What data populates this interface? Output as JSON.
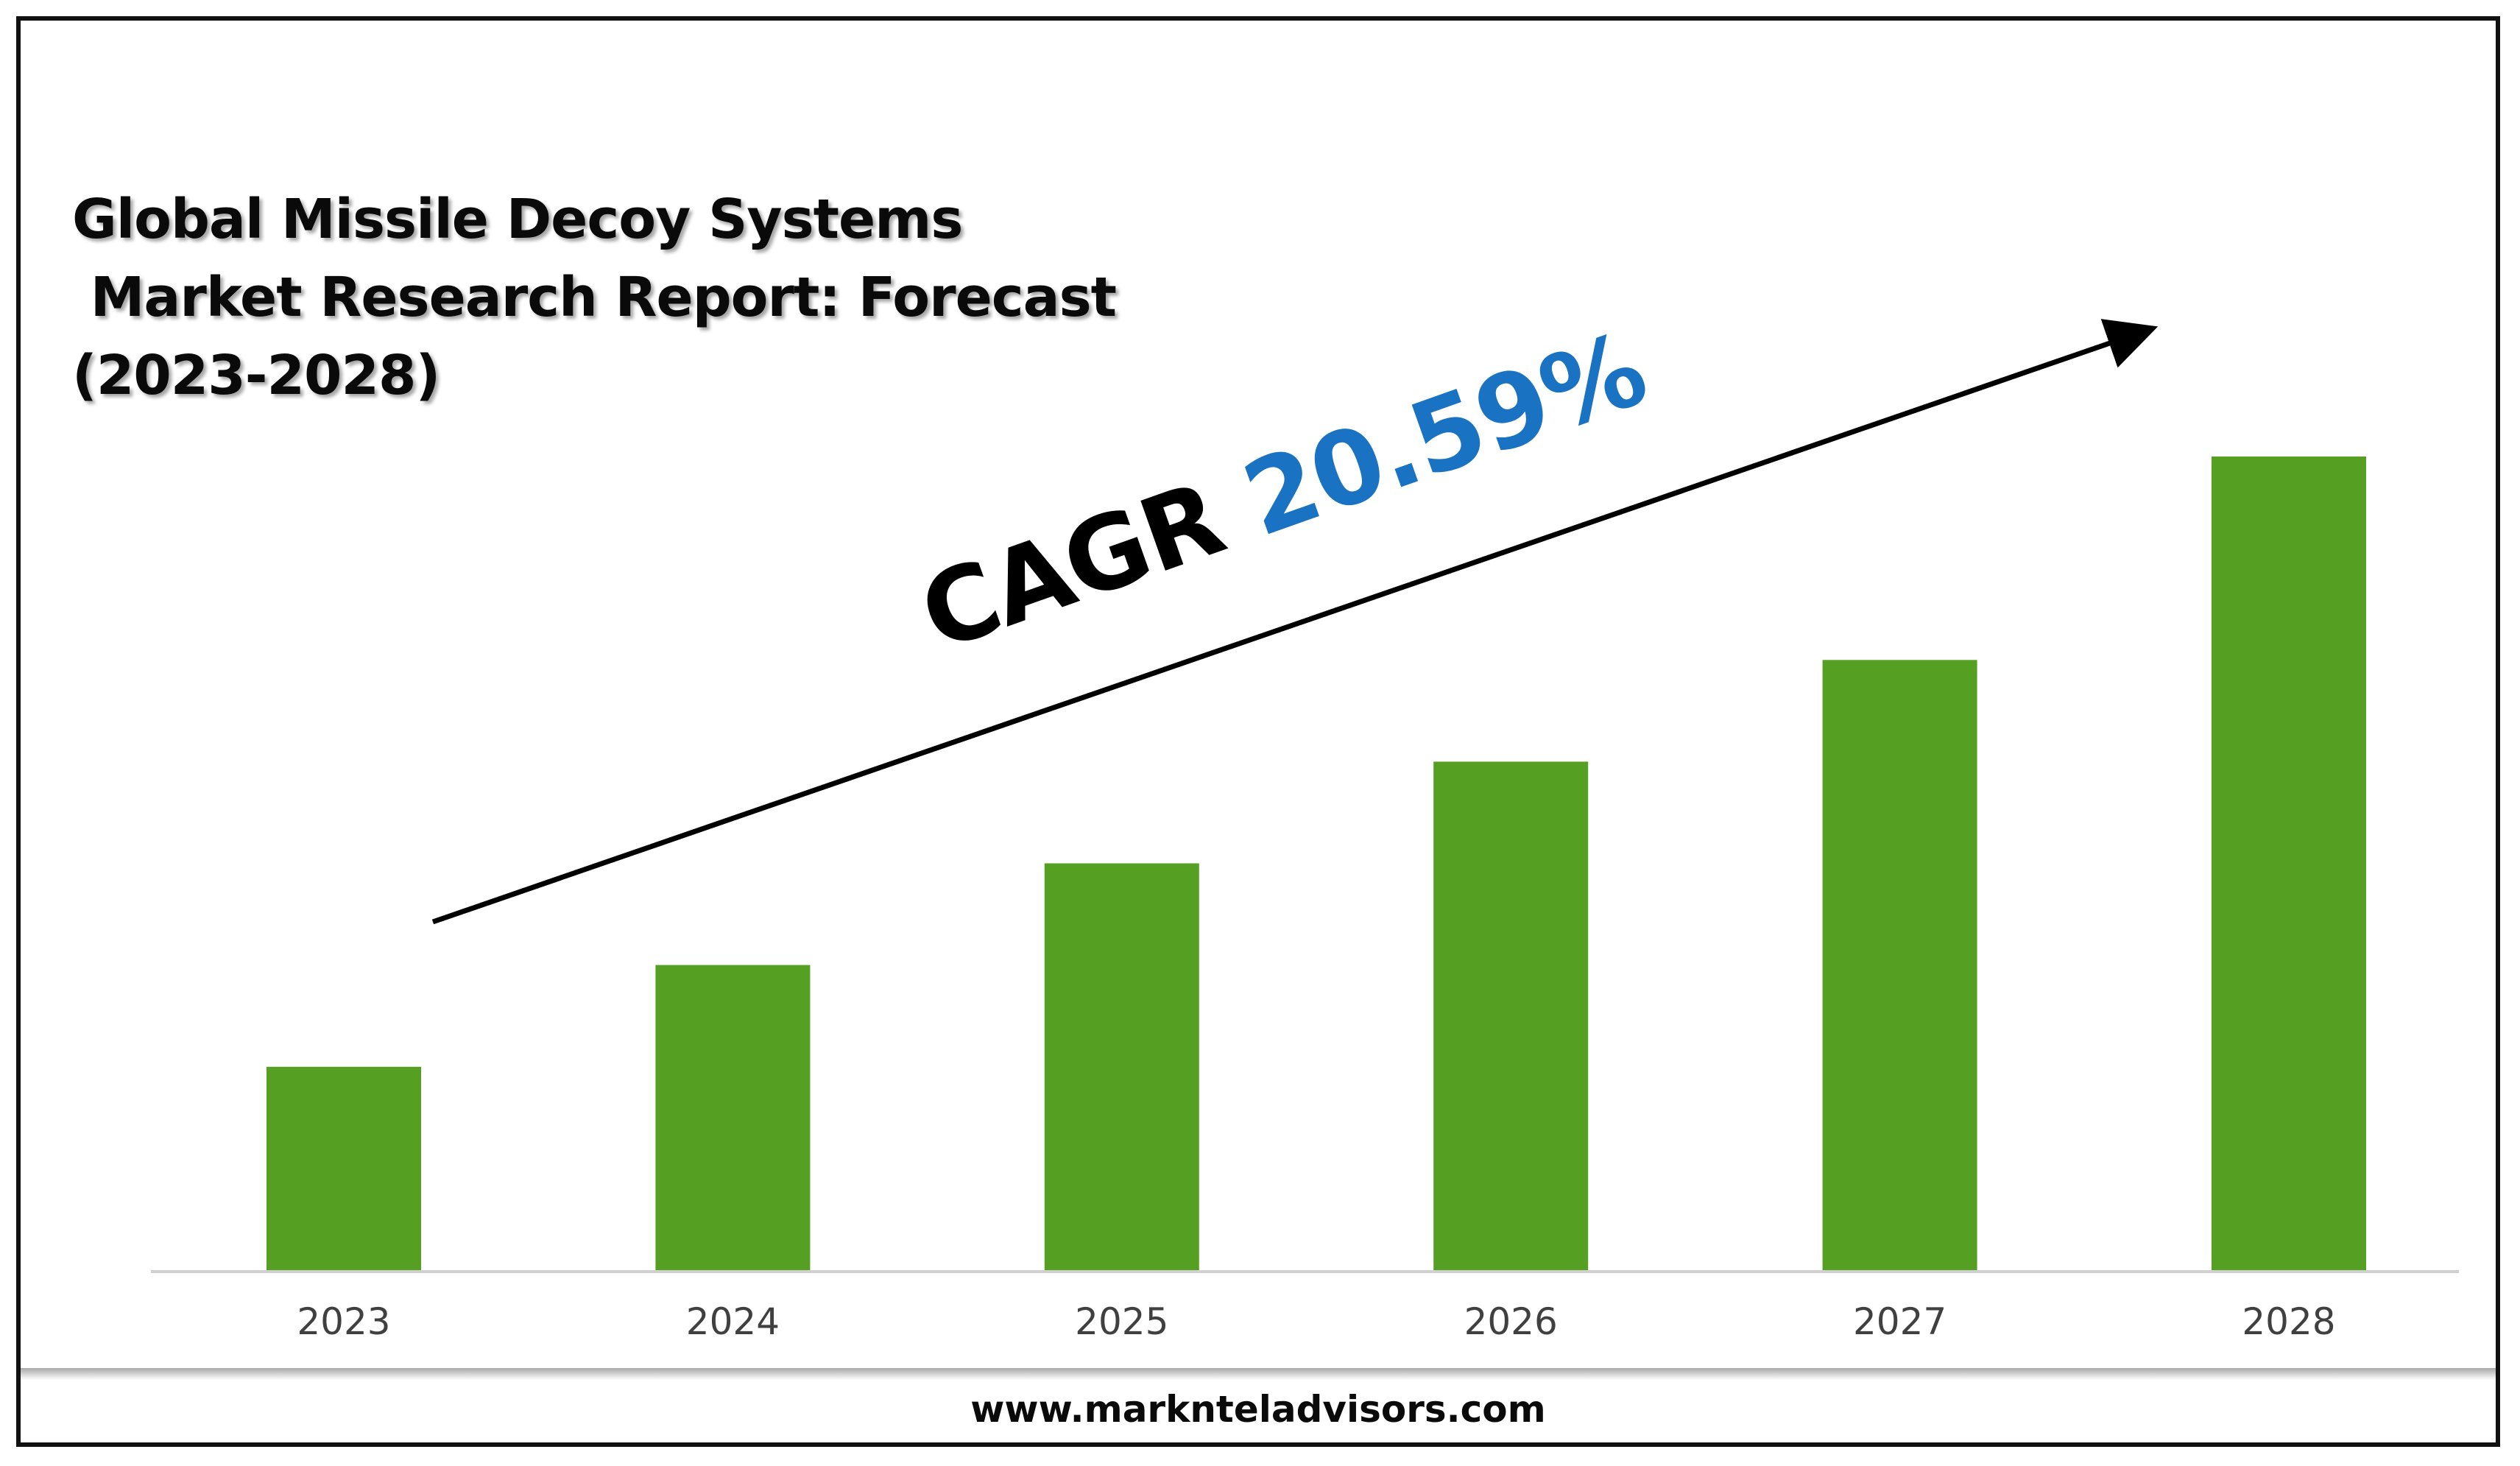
{
  "title": "Global Missile Decoy Systems\n Market Research Report: Forecast\n(2023-2028)",
  "cagr": {
    "label": "CAGR",
    "value": "20.59%",
    "value_color": "#1a73c2"
  },
  "footer": {
    "text": "www.marknteladvisors.com"
  },
  "chart_data": {
    "type": "bar",
    "categories": [
      "2023",
      "2024",
      "2025",
      "2026",
      "2027",
      "2028"
    ],
    "values": [
      1.0,
      1.5,
      2.0,
      2.5,
      3.0,
      4.0
    ],
    "bar_color": "#55a022",
    "axis_color": "#d0d0d0",
    "tick_label_color": "#404040",
    "ylim": [
      0,
      4.0
    ],
    "grid": false,
    "title": "Global Missile Decoy Systems Market Research Report: Forecast (2023-2028)",
    "xlabel": "",
    "ylabel": ""
  }
}
